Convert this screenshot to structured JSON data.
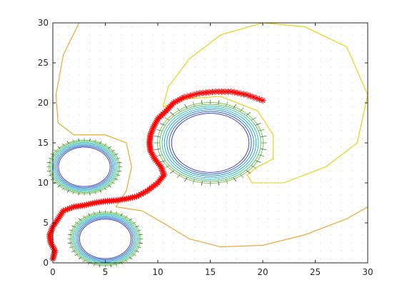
{
  "chart_data": {
    "type": "line",
    "title": "",
    "xlabel": "",
    "ylabel": "",
    "xlim": [
      0,
      30
    ],
    "ylim": [
      0,
      30
    ],
    "x_ticks": [
      "0",
      "5",
      "10",
      "15",
      "20",
      "25",
      "30"
    ],
    "y_ticks": [
      "0",
      "5",
      "10",
      "15",
      "20",
      "25",
      "30"
    ],
    "grid": "dotted background",
    "legend": "none",
    "obstacles": [
      {
        "name": "obstacle-left",
        "center": [
          3,
          12
        ],
        "radius": 3
      },
      {
        "name": "obstacle-bottom",
        "center": [
          5,
          3
        ],
        "radius": 3
      },
      {
        "name": "obstacle-right",
        "center": [
          15,
          15
        ],
        "radius": 4.5
      }
    ],
    "contours": [
      {
        "name": "contour-yellow",
        "color": "#e6d200",
        "points": [
          [
            10.5,
            19.5
          ],
          [
            11,
            22
          ],
          [
            13,
            25.5
          ],
          [
            16,
            28.5
          ],
          [
            20,
            30
          ],
          [
            24,
            29.5
          ],
          [
            28,
            27
          ],
          [
            30,
            21
          ],
          [
            29,
            15
          ],
          [
            26,
            12
          ],
          [
            22,
            10
          ],
          [
            19,
            10
          ],
          [
            18.5,
            11
          ],
          [
            19.5,
            12
          ],
          [
            21,
            13
          ],
          [
            21,
            16
          ],
          [
            19.5,
            19
          ],
          [
            16,
            20.8
          ],
          [
            12.5,
            20.5
          ],
          [
            10.5,
            19.5
          ]
        ]
      },
      {
        "name": "contour-orange",
        "color": "#f0a020",
        "points": [
          [
            2.5,
            30
          ],
          [
            1,
            26
          ],
          [
            0.3,
            21
          ],
          [
            0.5,
            17.5
          ],
          [
            2,
            16
          ],
          [
            5,
            16
          ],
          [
            7,
            15
          ],
          [
            7.5,
            12
          ],
          [
            7,
            9
          ],
          [
            6,
            7
          ],
          [
            8.5,
            6.5
          ],
          [
            10.5,
            5
          ],
          [
            13,
            3
          ],
          [
            16,
            2
          ],
          [
            20,
            2.2
          ],
          [
            24,
            3.5
          ],
          [
            28,
            5.5
          ],
          [
            30,
            7
          ]
        ]
      }
    ],
    "path": {
      "name": "robot-path",
      "color": "#ff0000",
      "marker": "*",
      "points": [
        [
          0,
          0.5
        ],
        [
          0.2,
          1.5
        ],
        [
          -0.2,
          2.5
        ],
        [
          -0.3,
          3.5
        ],
        [
          0,
          4.5
        ],
        [
          0.5,
          5.5
        ],
        [
          1,
          6.5
        ],
        [
          2,
          7
        ],
        [
          3,
          7.2
        ],
        [
          4,
          7.5
        ],
        [
          5,
          7.7
        ],
        [
          6,
          7.8
        ],
        [
          7,
          8
        ],
        [
          8,
          8.3
        ],
        [
          9,
          9
        ],
        [
          10,
          10
        ],
        [
          10.6,
          11
        ],
        [
          10.3,
          12
        ],
        [
          9.7,
          13
        ],
        [
          9.3,
          14
        ],
        [
          9.2,
          15
        ],
        [
          9.3,
          16
        ],
        [
          9.6,
          17
        ],
        [
          10,
          18
        ],
        [
          10.8,
          19
        ],
        [
          11.5,
          20
        ],
        [
          12.5,
          20.7
        ],
        [
          14,
          21.2
        ],
        [
          15.5,
          21.4
        ],
        [
          17,
          21.4
        ],
        [
          18.5,
          21
        ],
        [
          20,
          20.3
        ]
      ]
    }
  }
}
